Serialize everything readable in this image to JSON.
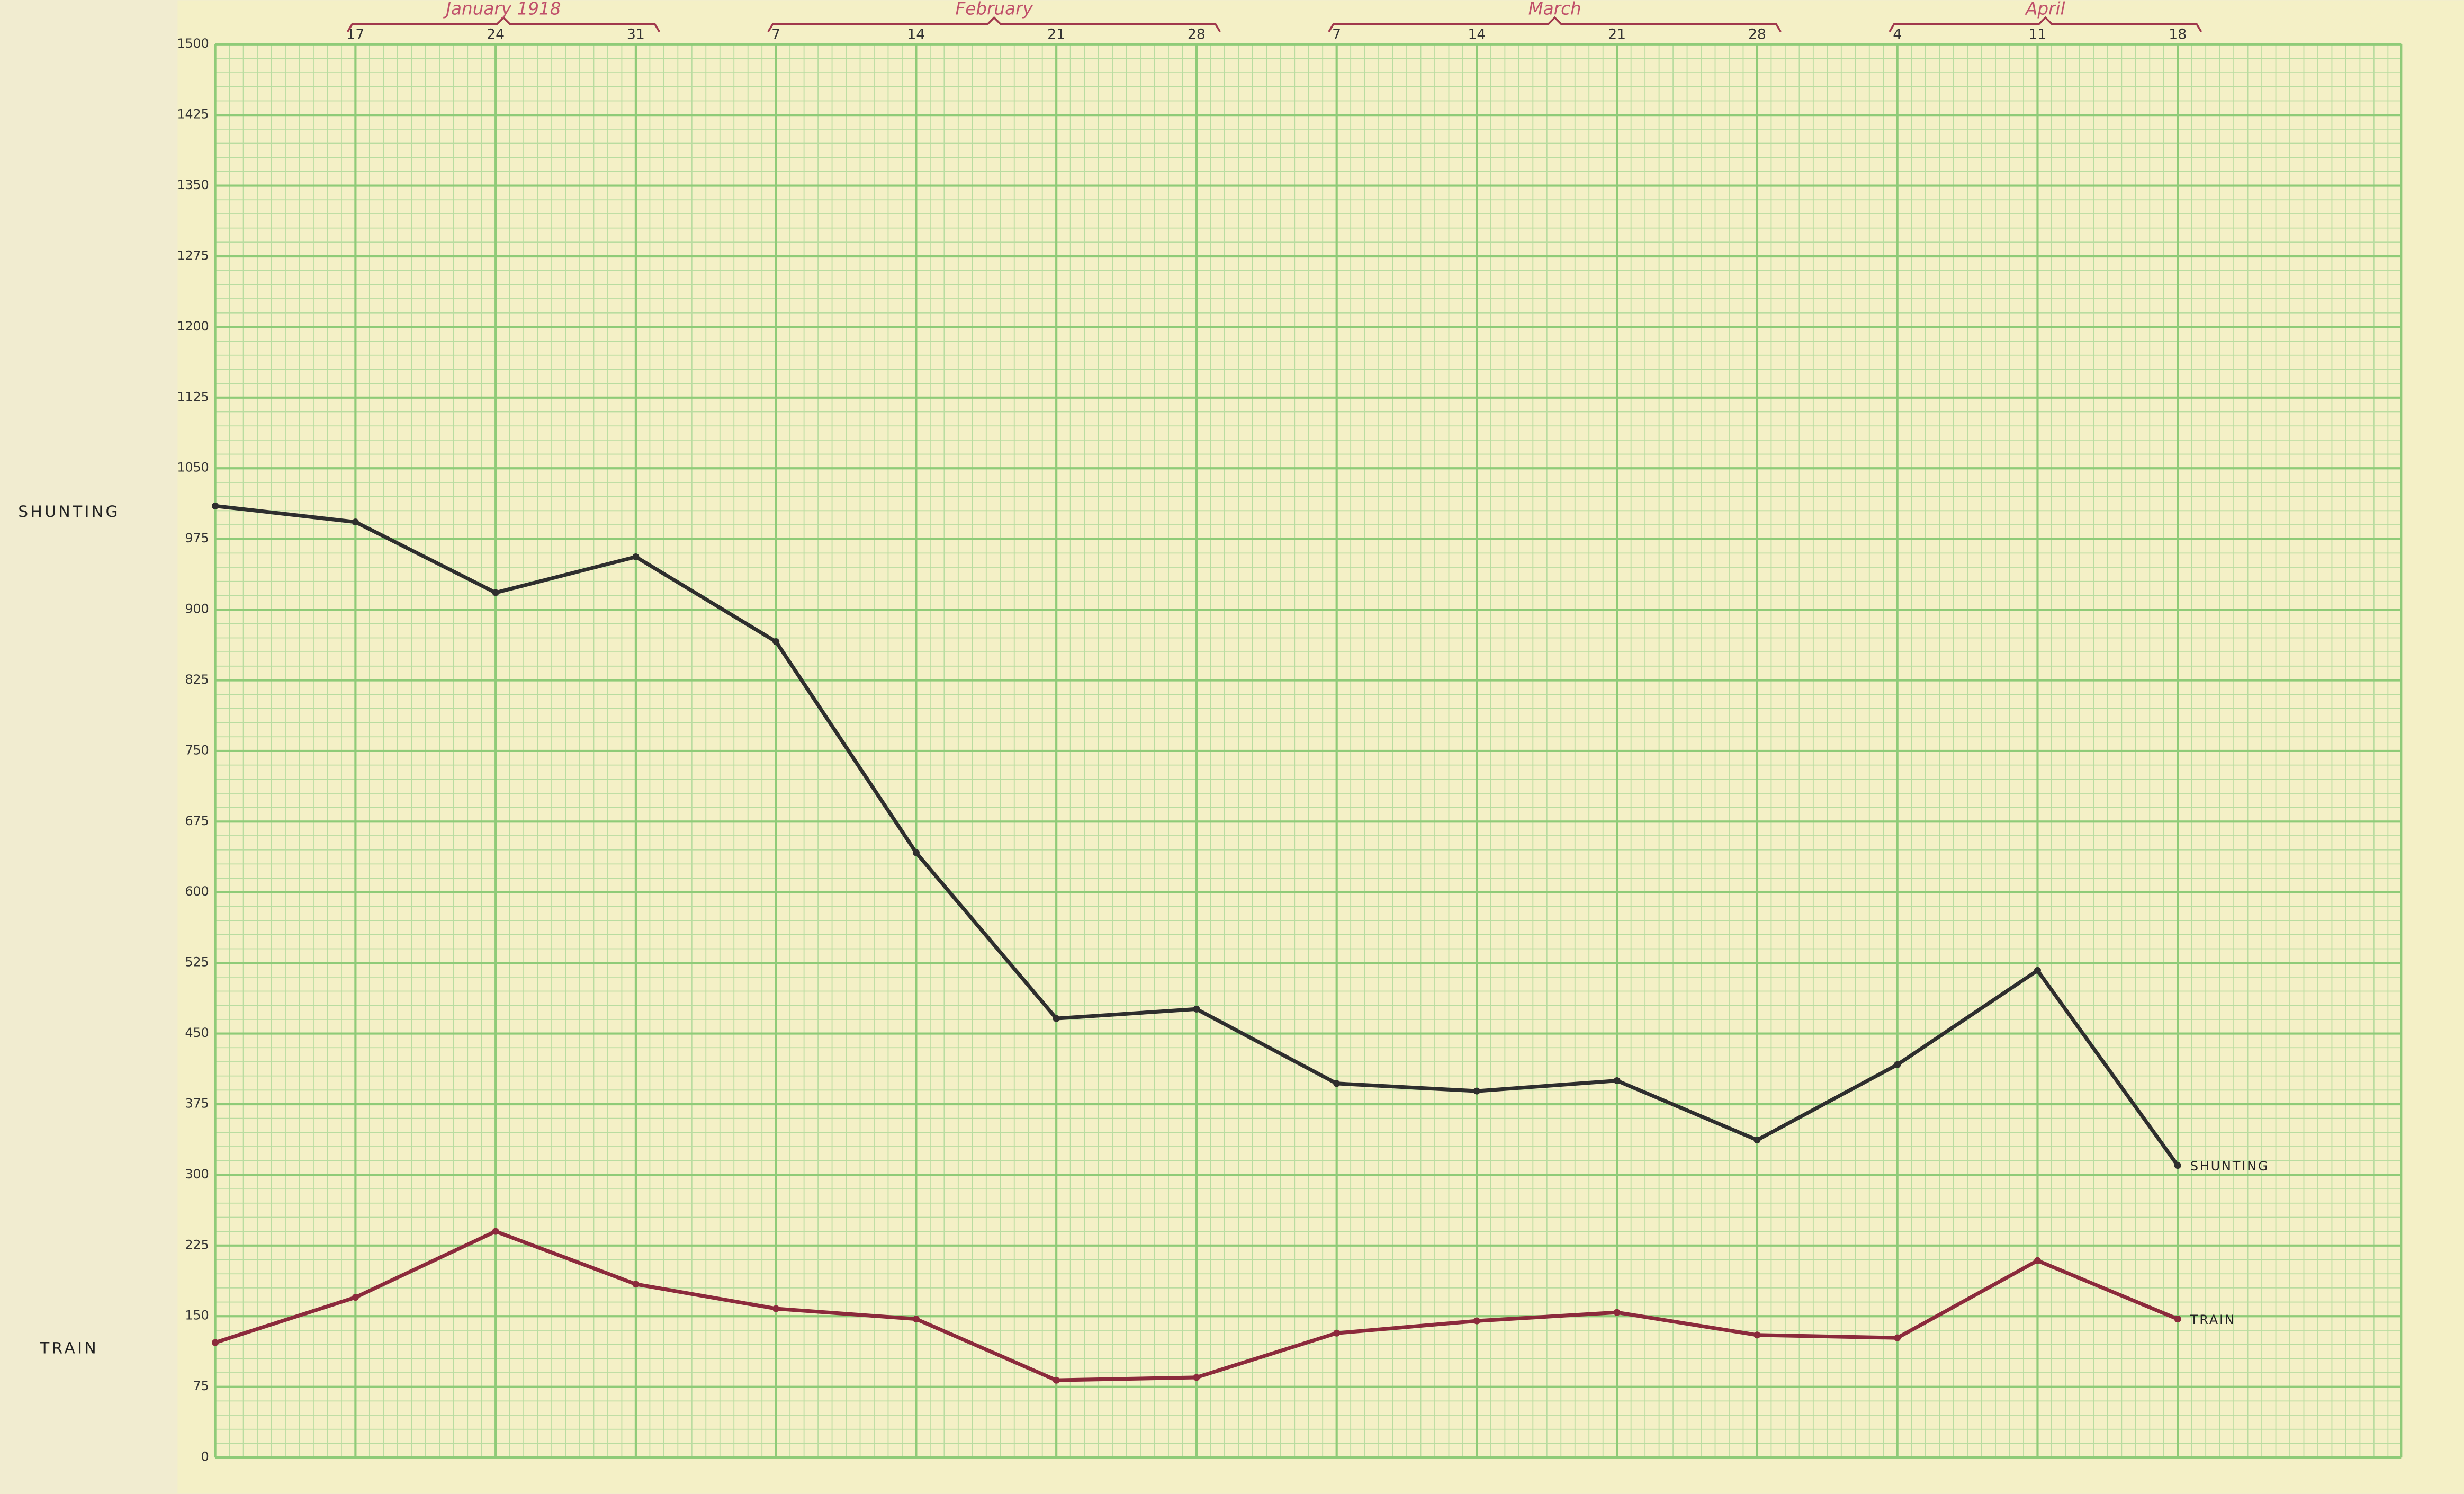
{
  "chart_data": {
    "type": "line",
    "categories": [
      null,
      "17",
      "24",
      "31",
      "7",
      "14",
      "21",
      "28",
      "7",
      "14",
      "21",
      "28",
      "4",
      "11",
      "18"
    ],
    "x_groups": [
      "January 1918",
      "February",
      "March",
      "April"
    ],
    "series": [
      {
        "name": "SHUNTING",
        "color": "#2e2e2e",
        "values": [
          1010,
          993,
          918,
          956,
          866,
          642,
          466,
          476,
          397,
          389,
          400,
          337,
          417,
          517,
          310
        ]
      },
      {
        "name": "TRAIN",
        "color": "#8b2a3c",
        "values": [
          122,
          170,
          240,
          184,
          158,
          147,
          82,
          85,
          132,
          145,
          154,
          130,
          127,
          209,
          147
        ]
      }
    ],
    "ylim": [
      0,
      1500
    ],
    "yticks": [
      0,
      75,
      150,
      225,
      300,
      375,
      450,
      525,
      600,
      675,
      750,
      825,
      900,
      975,
      1050,
      1125,
      1200,
      1275,
      1350,
      1425,
      1500
    ],
    "grid": true
  }
}
